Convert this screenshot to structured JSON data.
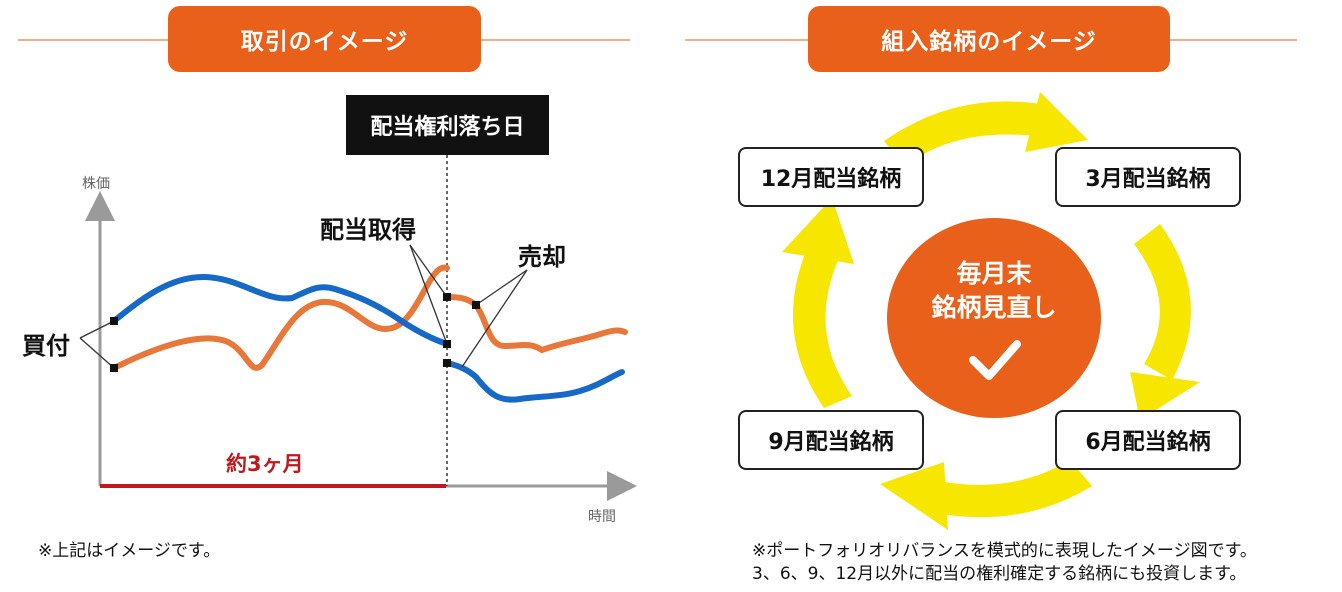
{
  "left_panel": {
    "title": "取引のイメージ",
    "ex_dividend_label": "配当権利落ち日",
    "y_axis_label": "株価",
    "x_axis_label": "時間",
    "buy_label": "買付",
    "dividend_label": "配当取得",
    "sell_label": "売却",
    "period_label": "約3ヶ月",
    "note": "※上記はイメージです。"
  },
  "right_panel": {
    "title": "組入銘柄のイメージ",
    "boxes": {
      "dec": "12月配当銘柄",
      "mar": "3月配当銘柄",
      "jun": "6月配当銘柄",
      "sep": "9月配当銘柄"
    },
    "center_line1": "毎月末",
    "center_line2": "銘柄見直し",
    "note_line1": "※ポートフォリオリバランスを模式的に表現したイメージ図です。",
    "note_line2": "3、6、9、12月以外に配当の権利確定する銘柄にも投資します。"
  },
  "colors": {
    "orange": "#e8601a",
    "line_orange": "#e8773a",
    "line_blue": "#1769c8",
    "period_red": "#c0181f",
    "arrow_yellow": "#f7e600"
  },
  "icons": {
    "check": "check-icon"
  }
}
